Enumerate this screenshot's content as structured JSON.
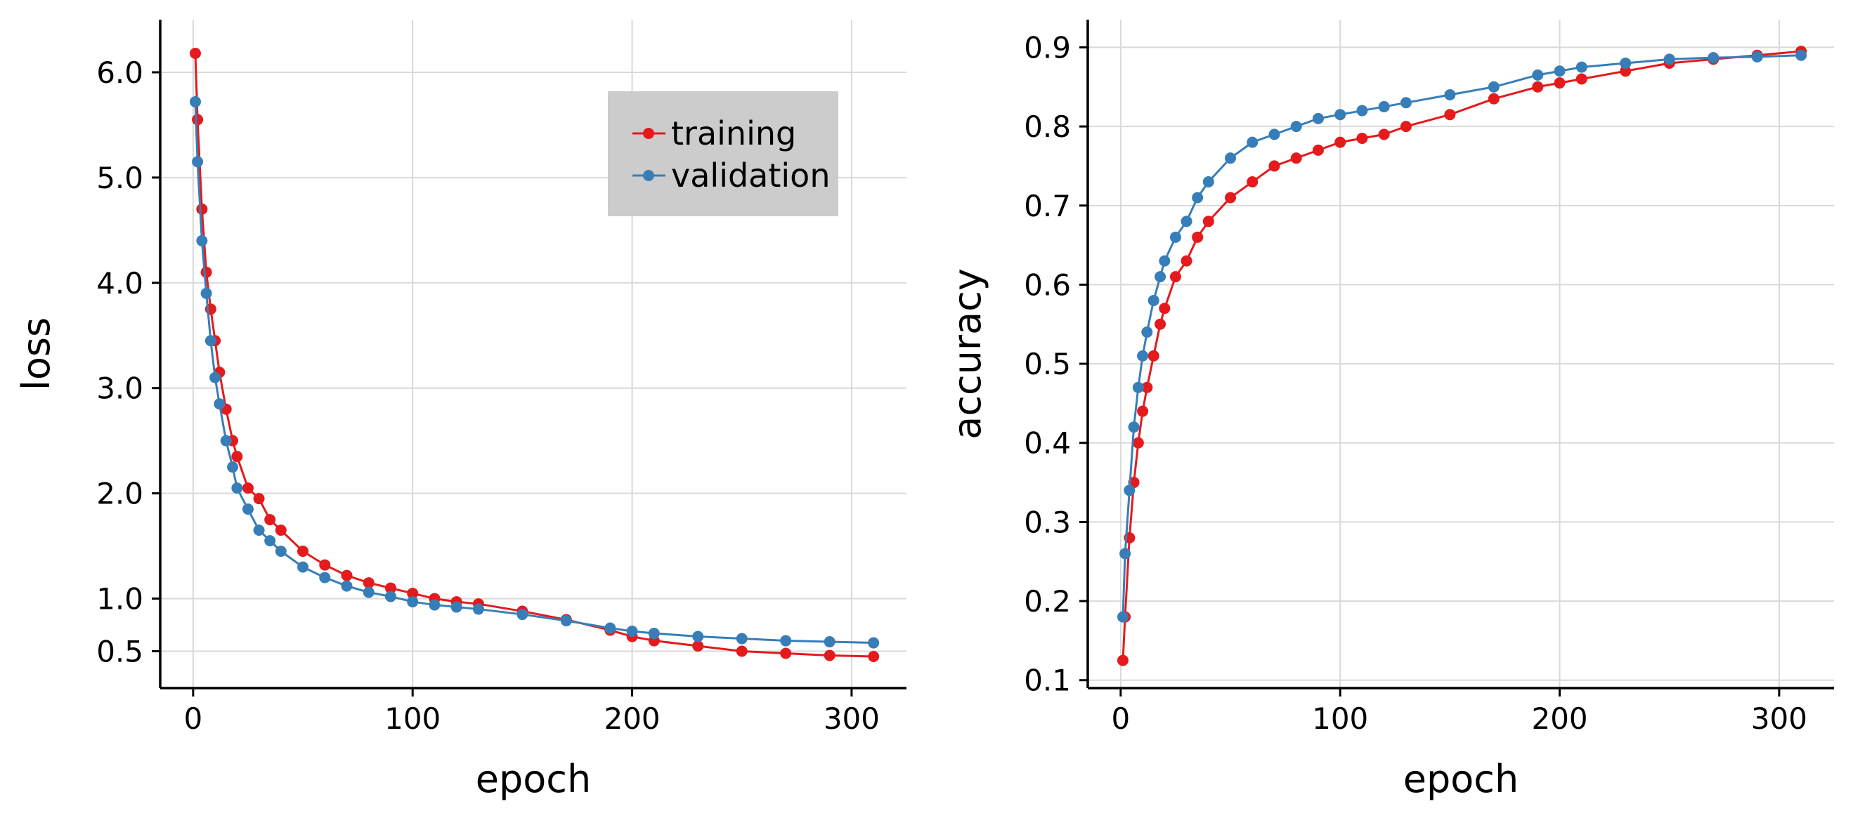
{
  "chart_data": [
    {
      "type": "line",
      "markers": true,
      "xlabel": "epoch",
      "ylabel": "loss",
      "xlim": [
        -15,
        325
      ],
      "ylim": [
        0.15,
        6.5
      ],
      "xticks": [
        0,
        100,
        200,
        300
      ],
      "xtick_labels": [
        "0",
        "100",
        "200",
        "300"
      ],
      "yticks": [
        0.5,
        1.0,
        2.0,
        3.0,
        4.0,
        5.0,
        6.0
      ],
      "ytick_labels": [
        "0.5",
        "1.0",
        "2.0",
        "3.0",
        "4.0",
        "5.0",
        "6.0"
      ],
      "grid": true,
      "legend": {
        "placement": "upper right",
        "background": "#cccccc",
        "entries": [
          "training",
          "validation"
        ]
      },
      "series": [
        {
          "name": "training",
          "color": "#e41a1c",
          "x": [
            1,
            2,
            4,
            6,
            8,
            10,
            12,
            15,
            18,
            20,
            25,
            30,
            35,
            40,
            50,
            60,
            70,
            80,
            90,
            100,
            110,
            120,
            130,
            150,
            170,
            190,
            200,
            210,
            230,
            250,
            270,
            290,
            310
          ],
          "y": [
            6.18,
            5.55,
            4.7,
            4.1,
            3.75,
            3.45,
            3.15,
            2.8,
            2.5,
            2.35,
            2.05,
            1.95,
            1.75,
            1.65,
            1.45,
            1.32,
            1.22,
            1.15,
            1.1,
            1.05,
            1.0,
            0.97,
            0.95,
            0.88,
            0.8,
            0.7,
            0.64,
            0.6,
            0.55,
            0.5,
            0.48,
            0.46,
            0.45
          ]
        },
        {
          "name": "validation",
          "color": "#377eb8",
          "x": [
            1,
            2,
            4,
            6,
            8,
            10,
            12,
            15,
            18,
            20,
            25,
            30,
            35,
            40,
            50,
            60,
            70,
            80,
            90,
            100,
            110,
            120,
            130,
            150,
            170,
            190,
            200,
            210,
            230,
            250,
            270,
            290,
            310
          ],
          "y": [
            5.72,
            5.15,
            4.4,
            3.9,
            3.45,
            3.1,
            2.85,
            2.5,
            2.25,
            2.05,
            1.85,
            1.65,
            1.55,
            1.45,
            1.3,
            1.2,
            1.12,
            1.06,
            1.02,
            0.97,
            0.94,
            0.92,
            0.9,
            0.85,
            0.79,
            0.72,
            0.69,
            0.67,
            0.64,
            0.62,
            0.6,
            0.59,
            0.58
          ]
        }
      ]
    },
    {
      "type": "line",
      "markers": true,
      "xlabel": "epoch",
      "ylabel": "accuracy",
      "xlim": [
        -15,
        325
      ],
      "ylim": [
        0.09,
        0.935
      ],
      "xticks": [
        0,
        100,
        200,
        300
      ],
      "xtick_labels": [
        "0",
        "100",
        "200",
        "300"
      ],
      "yticks": [
        0.1,
        0.2,
        0.3,
        0.4,
        0.5,
        0.6,
        0.7,
        0.8,
        0.9
      ],
      "ytick_labels": [
        "0.1",
        "0.2",
        "0.3",
        "0.4",
        "0.5",
        "0.6",
        "0.7",
        "0.8",
        "0.9"
      ],
      "grid": true,
      "series": [
        {
          "name": "training",
          "color": "#e41a1c",
          "x": [
            1,
            2,
            4,
            6,
            8,
            10,
            12,
            15,
            18,
            20,
            25,
            30,
            35,
            40,
            50,
            60,
            70,
            80,
            90,
            100,
            110,
            120,
            130,
            150,
            170,
            190,
            200,
            210,
            230,
            250,
            270,
            290,
            310
          ],
          "y": [
            0.125,
            0.18,
            0.28,
            0.35,
            0.4,
            0.44,
            0.47,
            0.51,
            0.55,
            0.57,
            0.61,
            0.63,
            0.66,
            0.68,
            0.71,
            0.73,
            0.75,
            0.76,
            0.77,
            0.78,
            0.785,
            0.79,
            0.8,
            0.815,
            0.835,
            0.85,
            0.855,
            0.86,
            0.87,
            0.88,
            0.885,
            0.89,
            0.895
          ]
        },
        {
          "name": "validation",
          "color": "#377eb8",
          "x": [
            1,
            2,
            4,
            6,
            8,
            10,
            12,
            15,
            18,
            20,
            25,
            30,
            35,
            40,
            50,
            60,
            70,
            80,
            90,
            100,
            110,
            120,
            130,
            150,
            170,
            190,
            200,
            210,
            230,
            250,
            270,
            290,
            310
          ],
          "y": [
            0.18,
            0.26,
            0.34,
            0.42,
            0.47,
            0.51,
            0.54,
            0.58,
            0.61,
            0.63,
            0.66,
            0.68,
            0.71,
            0.73,
            0.76,
            0.78,
            0.79,
            0.8,
            0.81,
            0.815,
            0.82,
            0.825,
            0.83,
            0.84,
            0.85,
            0.865,
            0.87,
            0.875,
            0.88,
            0.885,
            0.887,
            0.888,
            0.89
          ]
        }
      ]
    }
  ]
}
